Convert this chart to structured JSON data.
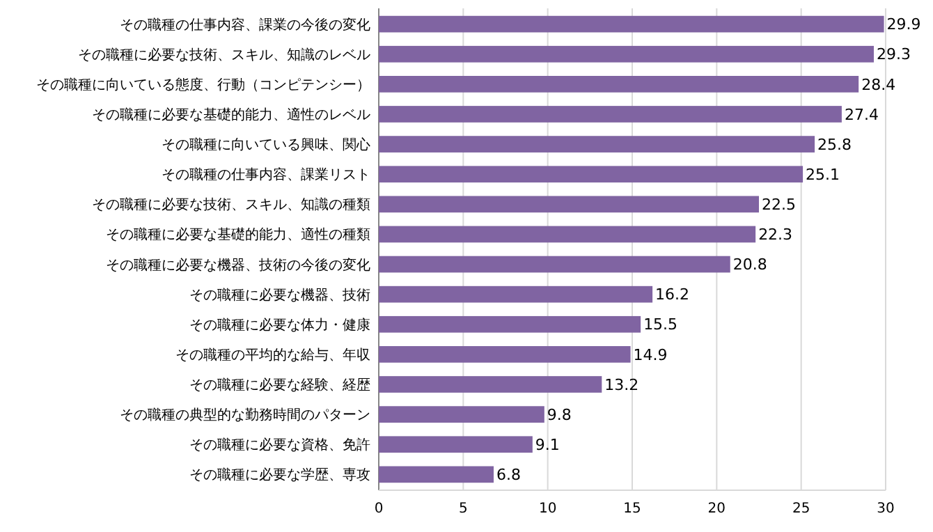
{
  "chart_data": {
    "type": "bar",
    "orientation": "horizontal",
    "categories": [
      "その職種の仕事内容、課業の今後の変化",
      "その職種に必要な技術、スキル、知識のレベル",
      "その職種に向いている態度、行動（コンピテンシー）",
      "その職種に必要な基礎的能力、適性のレベル",
      "その職種に向いている興味、関心",
      "その職種の仕事内容、課業リスト",
      "その職種に必要な技術、スキル、知識の種類",
      "その職種に必要な基礎的能力、適性の種類",
      "その職種に必要な機器、技術の今後の変化",
      "その職種に必要な機器、技術",
      "その職種に必要な体力・健康",
      "その職種の平均的な給与、年収",
      "その職種に必要な経験、経歴",
      "その職種の典型的な勤務時間のパターン",
      "その職種に必要な資格、免許",
      "その職種に必要な学歴、専攻"
    ],
    "values": [
      29.9,
      29.3,
      28.4,
      27.4,
      25.8,
      25.1,
      22.5,
      22.3,
      20.8,
      16.2,
      15.5,
      14.9,
      13.2,
      9.8,
      9.1,
      6.8
    ],
    "color": "#8064a2",
    "xlim": [
      0,
      30
    ],
    "xticks": [
      0,
      5,
      10,
      15,
      20,
      25,
      30
    ],
    "grid": "x",
    "data_labels": true
  }
}
